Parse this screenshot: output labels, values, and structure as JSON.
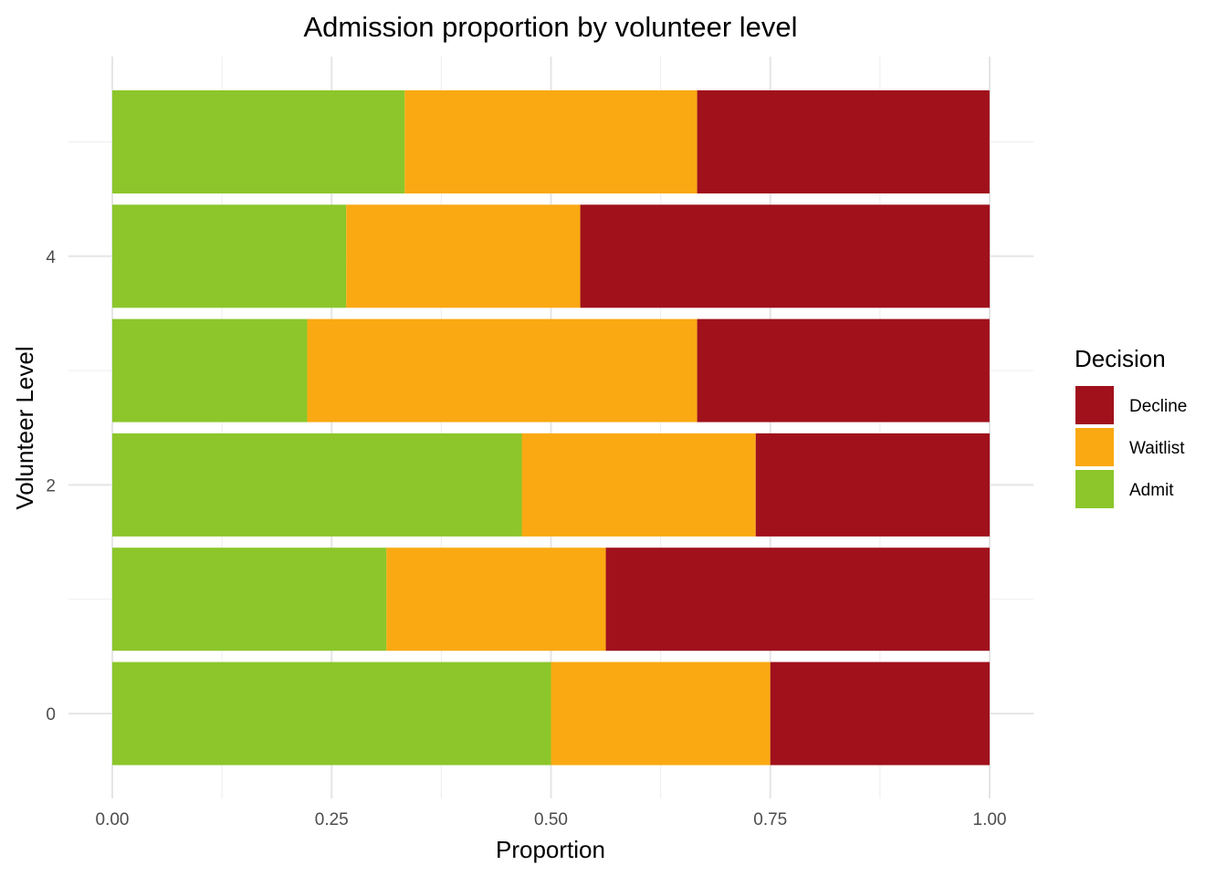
{
  "chart_data": {
    "type": "bar",
    "orientation": "horizontal",
    "stacked": true,
    "title": "Admission proportion by volunteer level",
    "xlabel": "Proportion",
    "ylabel": "Volunteer Level",
    "xlim": [
      0,
      1
    ],
    "ylim": [
      -0.5,
      5.5
    ],
    "x_ticks": [
      "0.00",
      "0.25",
      "0.50",
      "0.75",
      "1.00"
    ],
    "x_tick_values": [
      0,
      0.25,
      0.5,
      0.75,
      1.0
    ],
    "y_ticks": [
      "0",
      "2",
      "4"
    ],
    "y_tick_values": [
      0,
      2,
      4
    ],
    "categories": [
      0,
      1,
      2,
      3,
      4,
      5
    ],
    "series": [
      {
        "name": "Admit",
        "color": "#8cc62b",
        "values": [
          0.5,
          0.3125,
          0.4667,
          0.2222,
          0.2667,
          0.3333
        ]
      },
      {
        "name": "Waitlist",
        "color": "#faa912",
        "values": [
          0.25,
          0.25,
          0.2667,
          0.4444,
          0.2667,
          0.3333
        ]
      },
      {
        "name": "Decline",
        "color": "#a0111c",
        "values": [
          0.25,
          0.4375,
          0.2667,
          0.3333,
          0.4667,
          0.3333
        ]
      }
    ],
    "legend": {
      "title": "Decision",
      "position": "right",
      "order": [
        "Decline",
        "Waitlist",
        "Admit"
      ]
    },
    "grid": true
  }
}
